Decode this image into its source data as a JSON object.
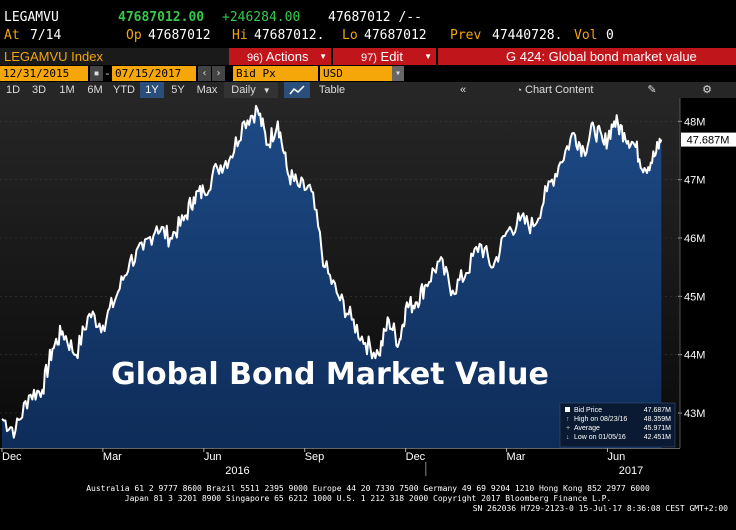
{
  "header": {
    "ticker": "LEGAMVU",
    "last": "47687012.00",
    "change": "+246284.00",
    "bid": "47687012 /--",
    "at_label": "At",
    "at_value": "7/14",
    "op_label": "Op",
    "op_value": "47687012",
    "hi_label": "Hi",
    "hi_value": "47687012.",
    "lo_label": "Lo",
    "lo_value": "47687012",
    "prev_label": "Prev",
    "prev_value": "47440728.",
    "vol_label": "Vol",
    "vol_value": "0"
  },
  "toolbar": {
    "index_label": "LEGAMVU Index",
    "actions_num": "96)",
    "actions_label": "Actions",
    "edit_num": "97)",
    "edit_label": "Edit",
    "graph_title": "G 424: Global bond market value"
  },
  "range": {
    "start_date": "12/31/2015",
    "end_date": "07/15/2017",
    "field": "Bid Px",
    "currency": "USD"
  },
  "periods": [
    "1D",
    "3D",
    "1M",
    "6M",
    "YTD",
    "1Y",
    "5Y",
    "Max"
  ],
  "selected_period": "1Y",
  "frequency": "Daily",
  "table_label": "Table",
  "chart_content_label": "Chart Content",
  "colors": {
    "amber": "#f2a60c",
    "green": "#36c84c",
    "red": "#c0161b",
    "fill": "#13356b",
    "line": "#ffffff"
  },
  "chart_data": {
    "type": "area",
    "title": "Global Bond Market Value",
    "ylim": [
      42.4,
      48.4
    ],
    "y_ticks": [
      "43M",
      "44M",
      "45M",
      "46M",
      "47M",
      "48M"
    ],
    "y_tick_values": [
      43,
      44,
      45,
      46,
      47,
      48
    ],
    "current_label": "47.687M",
    "current_value": 47.687,
    "x_tick_labels": [
      "Dec",
      "Mar",
      "Jun",
      "Sep",
      "Dec",
      "Mar",
      "Jun"
    ],
    "x_tick_months": [
      0,
      3,
      6,
      9,
      12,
      15,
      18
    ],
    "year_labels": [
      "2016",
      "2017"
    ],
    "year_label_months": [
      7,
      18.7
    ],
    "x": [
      0,
      0.4,
      0.8,
      1.2,
      1.5,
      1.8,
      2.2,
      2.6,
      3.0,
      3.4,
      3.8,
      4.2,
      4.6,
      5.0,
      5.4,
      5.7,
      6.0,
      6.4,
      6.8,
      7.2,
      7.6,
      7.9,
      8.2,
      8.5,
      8.8,
      9.2,
      9.6,
      10.0,
      10.4,
      10.8,
      11.2,
      11.5,
      11.8,
      12.0,
      12.3,
      12.6,
      13.0,
      13.4,
      13.8,
      14.2,
      14.6,
      15.0,
      15.4,
      15.8,
      16.2,
      16.6,
      17.0,
      17.3,
      17.6,
      17.9,
      18.2,
      18.5,
      18.8,
      19.1,
      19.4,
      19.6
    ],
    "values": [
      42.9,
      42.7,
      43.3,
      43.4,
      44.1,
      44.4,
      44.0,
      44.7,
      44.5,
      45.0,
      45.6,
      45.8,
      46.2,
      46.0,
      46.3,
      46.7,
      46.8,
      47.2,
      47.4,
      48.0,
      48.2,
      47.6,
      48.0,
      47.1,
      46.9,
      46.8,
      45.5,
      45.0,
      44.6,
      44.2,
      44.0,
      44.6,
      44.2,
      44.8,
      44.9,
      45.2,
      45.6,
      45.1,
      45.4,
      45.9,
      45.5,
      46.1,
      46.3,
      46.2,
      46.8,
      47.3,
      47.8,
      47.5,
      47.9,
      47.6,
      48.0,
      47.8,
      47.6,
      47.2,
      47.4,
      47.69
    ],
    "legend": {
      "bid_price_label": "Bid Price",
      "bid_price_value": "47.687M",
      "high_label": "High on 08/23/16",
      "high_value": "48.359M",
      "average_label": "Average",
      "average_value": "45.971M",
      "low_label": "Low on 01/05/16",
      "low_value": "42.451M"
    }
  },
  "footer": {
    "line1": "Australia 61 2 9777 8600 Brazil 5511 2395 9000 Europe 44 20 7330 7500 Germany 49 69 9204 1210 Hong Kong 852 2977 6000",
    "line2": "Japan 81 3 3201 8900         Singapore 65 6212 1000         U.S. 1 212 318 2000         Copyright 2017 Bloomberg Finance L.P.",
    "line3": "SN 262036 H729-2123-0 15-Jul-17  8:36:08 CEST GMT+2:00"
  }
}
